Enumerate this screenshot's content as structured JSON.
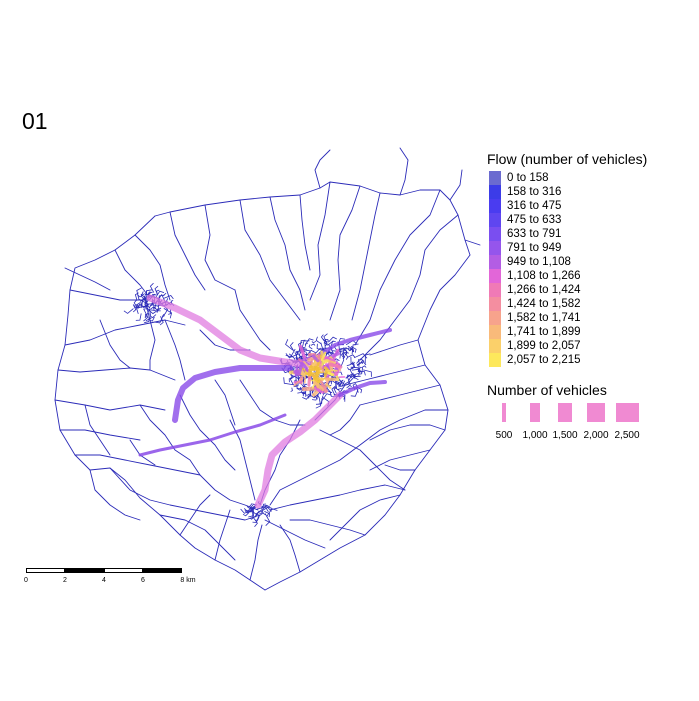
{
  "map": {
    "title": "01",
    "network_color": "#2b2bb8",
    "major_route_color": "#8a4be8",
    "hot_route_color": "#e07ce0",
    "centre_hotspot_color": "#f2c03a"
  },
  "legend_flow": {
    "title": "Flow (number of vehicles)",
    "items": [
      {
        "label": "0 to 158",
        "color": "#6b6bd0"
      },
      {
        "label": "158 to 316",
        "color": "#3c3ce8"
      },
      {
        "label": "316 to 475",
        "color": "#4a3cf0"
      },
      {
        "label": "475 to 633",
        "color": "#5f46f0"
      },
      {
        "label": "633 to 791",
        "color": "#7a4ef0"
      },
      {
        "label": "791 to 949",
        "color": "#9555ec"
      },
      {
        "label": "949 to 1,108",
        "color": "#b35de4"
      },
      {
        "label": "1,108 to 1,266",
        "color": "#e266d8"
      },
      {
        "label": "1,266 to 1,424",
        "color": "#f07ab6"
      },
      {
        "label": "1,424 to 1,582",
        "color": "#f48ea0"
      },
      {
        "label": "1,582 to 1,741",
        "color": "#f7a38c"
      },
      {
        "label": "1,741 to 1,899",
        "color": "#f9ba7a"
      },
      {
        "label": "1,899 to 2,057",
        "color": "#fbd06a"
      },
      {
        "label": "2,057 to 2,215",
        "color": "#fde85c"
      }
    ]
  },
  "legend_width": {
    "title": "Number of vehicles",
    "color": "#f08ad2",
    "items": [
      {
        "label": "500",
        "value": 500
      },
      {
        "label": "1,000",
        "value": 1000
      },
      {
        "label": "1,500",
        "value": 1500
      },
      {
        "label": "2,000",
        "value": 2000
      },
      {
        "label": "2,500",
        "value": 2500
      }
    ]
  },
  "scalebar": {
    "labels": [
      "0",
      "2",
      "4",
      "6",
      "8 km"
    ]
  }
}
